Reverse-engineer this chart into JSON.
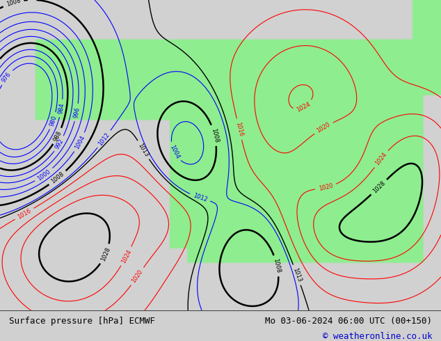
{
  "title_left": "Surface pressure [hPa] ECMWF",
  "title_right": "Mo 03-06-2024 06:00 UTC (00+150)",
  "copyright": "© weatheronline.co.uk",
  "bg_color": "#d0d0d0",
  "map_bg_color": "#c8c8c8",
  "land_color": "#90ee90",
  "ocean_color": "#d3d3d3",
  "footer_bg": "#e8e8e8",
  "blue_contour_color": "#0000ff",
  "black_contour_color": "#000000",
  "red_contour_color": "#ff0000",
  "title_fontsize": 9,
  "copyright_fontsize": 9,
  "contour_fontsize": 7
}
